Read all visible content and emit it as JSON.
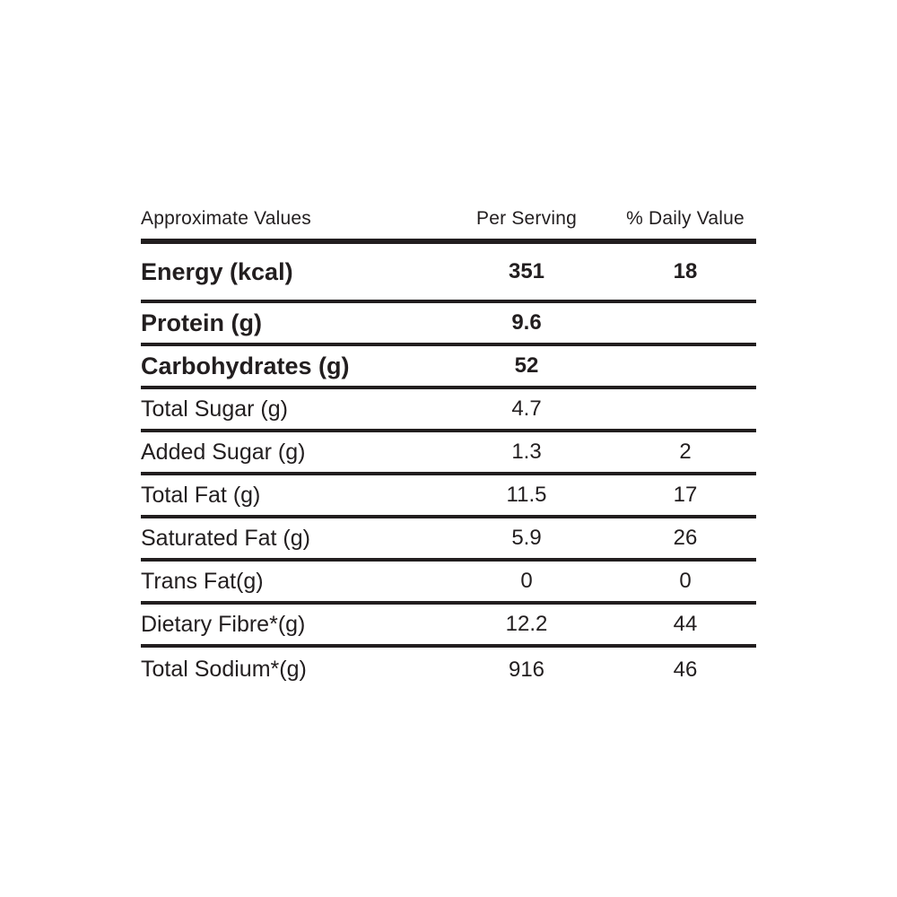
{
  "table": {
    "header": {
      "label": "Approximate Values",
      "per_serving": "Per Serving",
      "daily_value": "% Daily Value"
    },
    "rows": [
      {
        "label": "Energy (kcal)",
        "per_serving": "351",
        "daily_value": "18",
        "bold": true
      },
      {
        "label": "Protein (g)",
        "per_serving": "9.6",
        "daily_value": "",
        "bold": true
      },
      {
        "label": "Carbohydrates (g)",
        "per_serving": "52",
        "daily_value": "",
        "bold": true
      },
      {
        "label": "Total Sugar (g)",
        "per_serving": "4.7",
        "daily_value": "",
        "bold": false
      },
      {
        "label": "Added Sugar (g)",
        "per_serving": "1.3",
        "daily_value": "2",
        "bold": false
      },
      {
        "label": "Total Fat (g)",
        "per_serving": "11.5",
        "daily_value": "17",
        "bold": false
      },
      {
        "label": "Saturated Fat (g)",
        "per_serving": "5.9",
        "daily_value": "26",
        "bold": false
      },
      {
        "label": "Trans Fat(g)",
        "per_serving": "0",
        "daily_value": "0",
        "bold": false
      },
      {
        "label": "Dietary Fibre*(g)",
        "per_serving": "12.2",
        "daily_value": "44",
        "bold": false
      },
      {
        "label": "Total Sodium*(g)",
        "per_serving": "916",
        "daily_value": "46",
        "bold": false
      }
    ],
    "colors": {
      "text": "#221e1f",
      "rule": "#221e1f",
      "background": "#ffffff"
    }
  }
}
